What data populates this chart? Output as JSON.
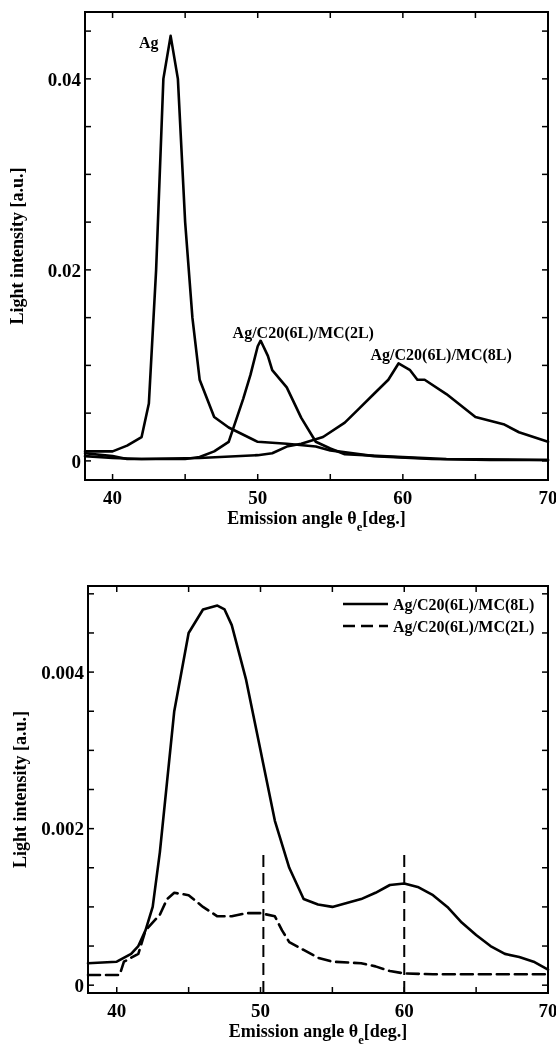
{
  "chart_data": [
    {
      "type": "line",
      "xlabel": "Emission angle θ$_{e}$[deg.]",
      "ylabel": "Light intensity [a.u.]",
      "xlim": [
        38.1,
        70
      ],
      "xticks": [
        40,
        {
          "value": 45,
          "label": null
        },
        50,
        {
          "value": 55,
          "label": null
        },
        60,
        {
          "value": 65,
          "label": null
        },
        70
      ],
      "ylim": [
        -0.002,
        0.047
      ],
      "yticks": [
        0,
        {
          "value": 0.005,
          "label": null
        },
        {
          "value": 0.01,
          "label": null
        },
        {
          "value": 0.015,
          "label": null
        },
        0.02,
        {
          "value": 0.025,
          "label": null
        },
        {
          "value": 0.03,
          "label": null
        },
        {
          "value": 0.035,
          "label": null
        },
        0.04,
        {
          "value": 0.045,
          "label": null
        }
      ],
      "grid": false,
      "series": [
        {
          "name": "Ag",
          "color": "#000000",
          "x": [
            38.1,
            40,
            41,
            42,
            42.5,
            43,
            43.5,
            44,
            44.5,
            45,
            45.5,
            46,
            47,
            48,
            50,
            52,
            54,
            55,
            58,
            62,
            66,
            70
          ],
          "values": [
            0.001,
            0.001,
            0.0016,
            0.0025,
            0.006,
            0.02,
            0.04,
            0.0445,
            0.04,
            0.025,
            0.015,
            0.0085,
            0.0046,
            0.0035,
            0.002,
            0.0018,
            0.0015,
            0.0011,
            0.0005,
            0.0002,
            0.0001,
            0.0001
          ]
        },
        {
          "name": "Ag/C20(6L)/MC(2L)",
          "color": "#000000",
          "x": [
            38.1,
            40,
            41,
            45,
            46,
            47,
            48,
            49,
            49.5,
            50,
            50.2,
            50.7,
            51,
            52,
            53,
            54,
            55,
            56,
            60,
            63,
            70
          ],
          "values": [
            0.0008,
            0.0005,
            0.0002,
            0.0002,
            0.0004,
            0.001,
            0.002,
            0.0065,
            0.009,
            0.012,
            0.0126,
            0.011,
            0.0095,
            0.0077,
            0.0045,
            0.002,
            0.0013,
            0.0007,
            0.0004,
            0.0002,
            0.0001
          ]
        },
        {
          "name": "Ag/C20(6L)/MC(8L)",
          "color": "#000000",
          "x": [
            38.1,
            40,
            42,
            46,
            50,
            51,
            52,
            53,
            54.5,
            56,
            57,
            58,
            59,
            59.7,
            60.5,
            61,
            61.5,
            63,
            65,
            67,
            68,
            70
          ],
          "values": [
            0.0005,
            0.0003,
            0.0002,
            0.0003,
            0.0006,
            0.0008,
            0.0015,
            0.0018,
            0.0025,
            0.004,
            0.0055,
            0.007,
            0.0085,
            0.0102,
            0.0095,
            0.0085,
            0.0085,
            0.007,
            0.0046,
            0.0038,
            0.003,
            0.002
          ]
        }
      ]
    },
    {
      "type": "line",
      "xlabel": "Emission angle θ$_{e}$[deg.]",
      "ylabel": "Light intensity [a.u.]",
      "xlim": [
        38,
        70
      ],
      "xticks": [
        40,
        {
          "value": 45,
          "label": null
        },
        50,
        {
          "value": 55,
          "label": null
        },
        60,
        {
          "value": 65,
          "label": null
        },
        70
      ],
      "ylim": [
        -0.0001,
        0.0051
      ],
      "yticks": [
        0,
        {
          "value": 0.0005,
          "label": null
        },
        {
          "value": 0.001,
          "label": null
        },
        {
          "value": 0.0015,
          "label": null
        },
        {
          "value": 0.002,
          "label": "0.002"
        },
        {
          "value": 0.0025,
          "label": null
        },
        {
          "value": 0.003,
          "label": null
        },
        {
          "value": 0.0035,
          "label": null
        },
        {
          "value": 0.004,
          "label": "0.004"
        },
        {
          "value": 0.0045,
          "label": null
        },
        {
          "value": 0.005,
          "label": null
        }
      ],
      "legend": "top right",
      "grid": false,
      "ref_lines": [
        {
          "axis": "x",
          "value": 50.2,
          "line_style": "dashed",
          "color": "#000000"
        },
        {
          "axis": "x",
          "value": 60,
          "line_style": "dashed",
          "color": "#000000"
        }
      ],
      "series": [
        {
          "name": "Ag/C20(6L)/MC(8L)",
          "color": "#000000",
          "line_style": "solid",
          "x": [
            38,
            40,
            41,
            41.5,
            42,
            42.5,
            43,
            43.5,
            44,
            45,
            46,
            47,
            47.5,
            48,
            49,
            50,
            51,
            51.5,
            52,
            53,
            54,
            55,
            56,
            57,
            58,
            59,
            60,
            61,
            62,
            63,
            64,
            65,
            66,
            67,
            68,
            69,
            70
          ],
          "values": [
            0.00028,
            0.0003,
            0.0004,
            0.0005,
            0.0007,
            0.001,
            0.0017,
            0.0026,
            0.0035,
            0.0045,
            0.0048,
            0.00485,
            0.0048,
            0.0046,
            0.0039,
            0.003,
            0.0021,
            0.0018,
            0.0015,
            0.0011,
            0.00103,
            0.001,
            0.00105,
            0.0011,
            0.00118,
            0.00128,
            0.0013,
            0.00125,
            0.00115,
            0.001,
            0.0008,
            0.00064,
            0.0005,
            0.0004,
            0.00036,
            0.0003,
            0.0002
          ]
        },
        {
          "name": "Ag/C20(6L)/MC(2L)",
          "color": "#000000",
          "line_style": "dashed",
          "x": [
            38,
            40.2,
            40.5,
            41.5,
            42,
            43,
            43.5,
            44,
            45,
            46,
            47,
            48,
            49,
            50,
            51,
            51.5,
            52,
            53,
            54,
            55,
            57,
            58,
            59,
            60,
            62,
            70
          ],
          "values": [
            0.00013,
            0.00013,
            0.0003,
            0.0004,
            0.0007,
            0.0009,
            0.0011,
            0.00118,
            0.00115,
            0.001,
            0.00088,
            0.00088,
            0.00092,
            0.00092,
            0.00088,
            0.0007,
            0.00055,
            0.00045,
            0.00035,
            0.0003,
            0.00028,
            0.00024,
            0.00018,
            0.00015,
            0.00014,
            0.00014
          ]
        }
      ]
    }
  ]
}
